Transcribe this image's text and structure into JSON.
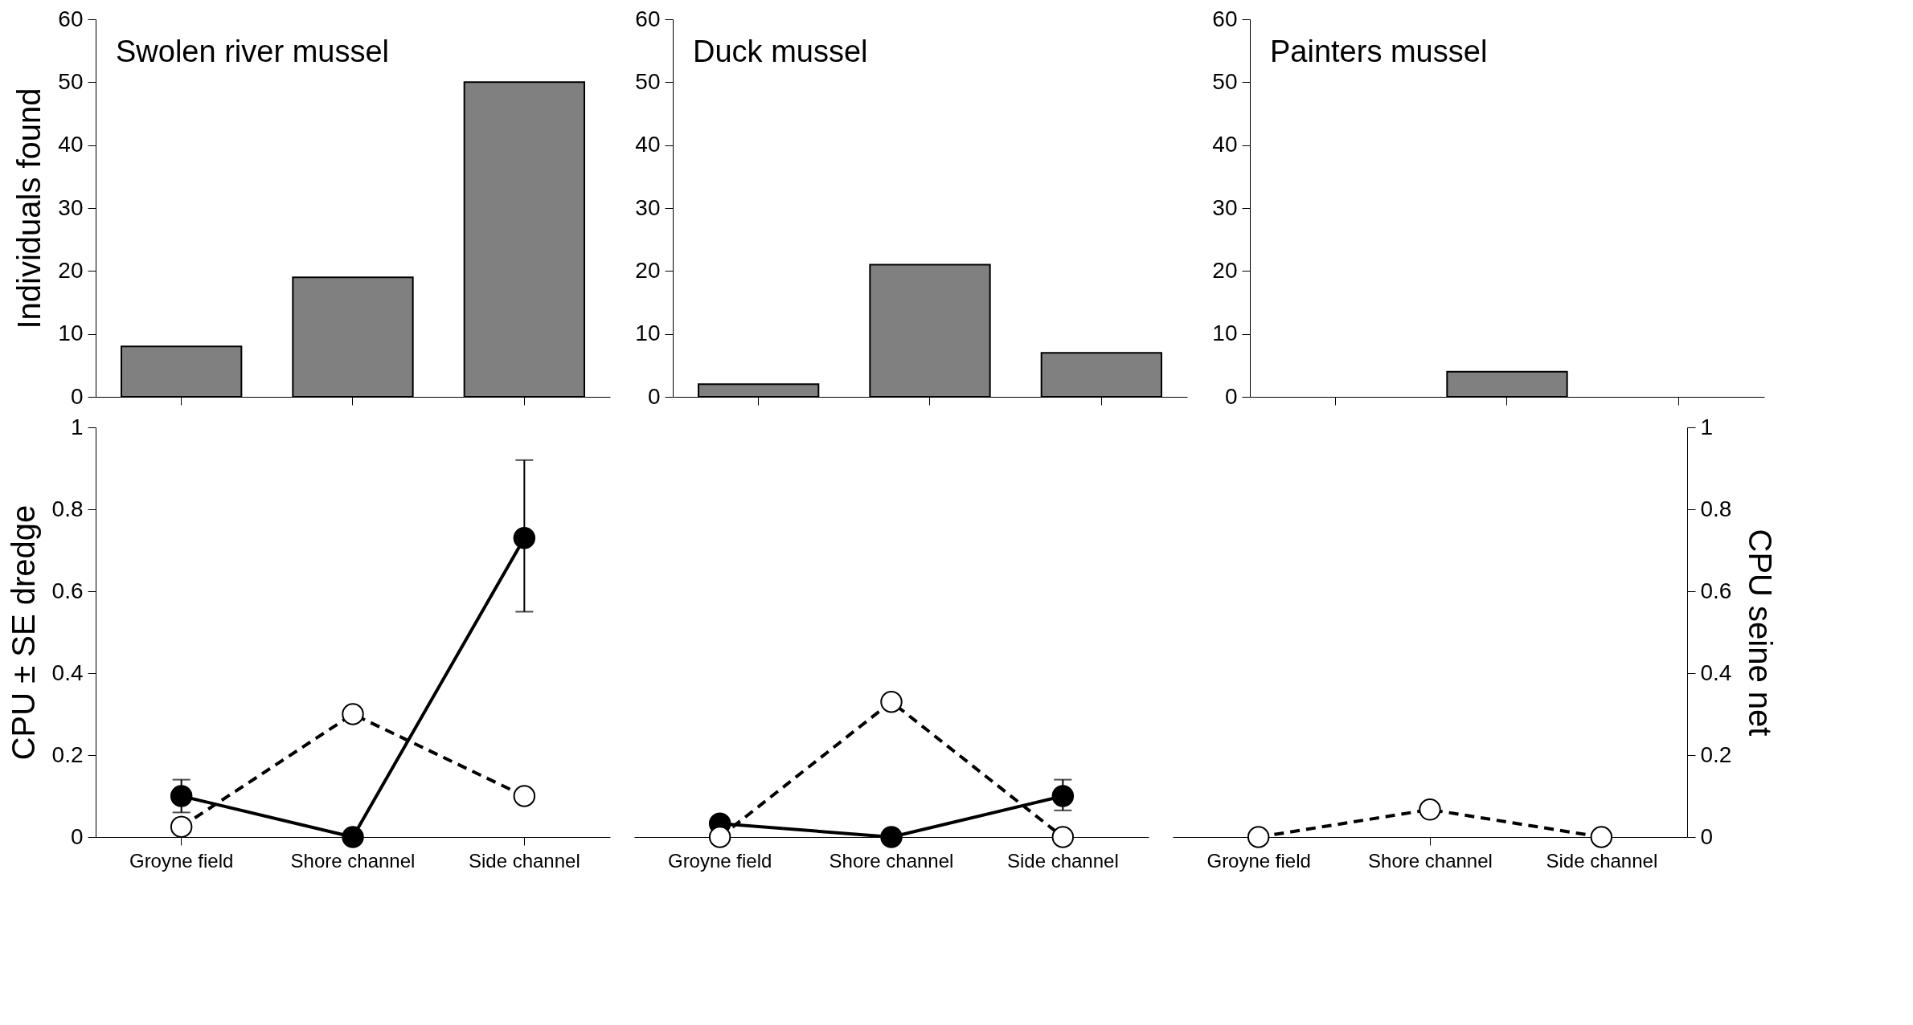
{
  "chart_data": [
    {
      "type": "bar",
      "title": "Swolen river mussel",
      "ylabel": "Individuals found",
      "categories": [
        null,
        null,
        null
      ],
      "values": [
        8,
        19,
        50
      ],
      "color": "#808080",
      "ylim": [
        0,
        60
      ],
      "yticks": [
        0,
        10,
        20,
        30,
        40,
        50,
        60
      ],
      "tick_labels": "y"
    },
    {
      "type": "bar",
      "title": "Duck mussel",
      "categories": [
        null,
        null,
        null
      ],
      "values": [
        2,
        21,
        7
      ],
      "color": "#808080",
      "ylim": [
        0,
        60
      ],
      "yticks": [
        0,
        10,
        20,
        30,
        40,
        50,
        60
      ],
      "tick_labels": "y"
    },
    {
      "type": "bar",
      "title": "Painters mussel",
      "categories": [
        null,
        null,
        null
      ],
      "values": [
        null,
        4,
        null
      ],
      "color": "#808080",
      "ylim": [
        0,
        60
      ],
      "yticks": [
        0,
        10,
        20,
        30,
        40,
        50,
        60
      ],
      "tick_labels": "y"
    },
    {
      "type": "line",
      "ylabel": "CPU ± SE dredge",
      "categories": [
        "Groyne field",
        "Shore channel",
        "Side channel"
      ],
      "ylim": [
        0,
        1
      ],
      "yticks": [
        0,
        0.2,
        0.4,
        0.6,
        0.8,
        1
      ],
      "marker": "circle",
      "series": [
        {
          "color": "#000000",
          "line_style": "solid",
          "values": [
            0.1,
            0,
            0.73
          ],
          "errors": [
            0.04,
            null,
            [
              0.55,
              0.92
            ]
          ]
        },
        {
          "color": "#ffffff",
          "line_style": "dashed",
          "values": [
            0.025,
            0.3,
            0.1
          ]
        }
      ]
    },
    {
      "type": "line",
      "categories": [
        "Groyne field",
        "Shore channel",
        "Side channel"
      ],
      "ylim": [
        0,
        1
      ],
      "tick_labels": "x",
      "marker": "circle",
      "series": [
        {
          "color": "#000000",
          "line_style": "solid",
          "values": [
            0.033,
            0,
            0.1
          ],
          "errors": [
            null,
            null,
            [
              0.065,
              0.14
            ]
          ]
        },
        {
          "color": "#ffffff",
          "line_style": "dashed",
          "values": [
            0,
            0.33,
            0
          ]
        }
      ]
    },
    {
      "type": "line",
      "y2label": "CPU seine  net",
      "categories": [
        "Groyne field",
        "Shore channel",
        "Side channel"
      ],
      "y2lim": [
        0,
        1
      ],
      "y2ticks": [
        0,
        0.2,
        0.4,
        0.6,
        0.8,
        1
      ],
      "marker": "circle",
      "series": [
        {
          "color": "#ffffff",
          "line_style": "dashed",
          "axis": "y2",
          "values": [
            0,
            0.067,
            0
          ]
        }
      ]
    }
  ]
}
